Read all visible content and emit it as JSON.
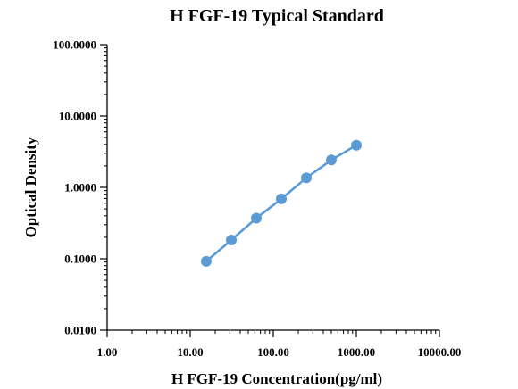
{
  "chart_data": {
    "type": "line",
    "title": "H FGF-19 Typical Standard",
    "xlabel": "H FGF-19 Concentration(pg/ml)",
    "ylabel": "Optical Density",
    "x_scale": "log",
    "y_scale": "log",
    "xlim": [
      1,
      10000
    ],
    "ylim": [
      0.01,
      100
    ],
    "x_ticks": [
      "1.00",
      "10.00",
      "100.00",
      "1000.00",
      "10000.00"
    ],
    "y_ticks": [
      "0.0100",
      "0.1000",
      "1.0000",
      "10.0000",
      "100.0000"
    ],
    "grid": false,
    "legend": "none",
    "series": [
      {
        "x": [
          15.6,
          31.25,
          62.5,
          125,
          250,
          500,
          1000
        ],
        "y": [
          0.092,
          0.183,
          0.37,
          0.69,
          1.36,
          2.42,
          3.9
        ],
        "color": "#5b9bd5"
      }
    ]
  }
}
